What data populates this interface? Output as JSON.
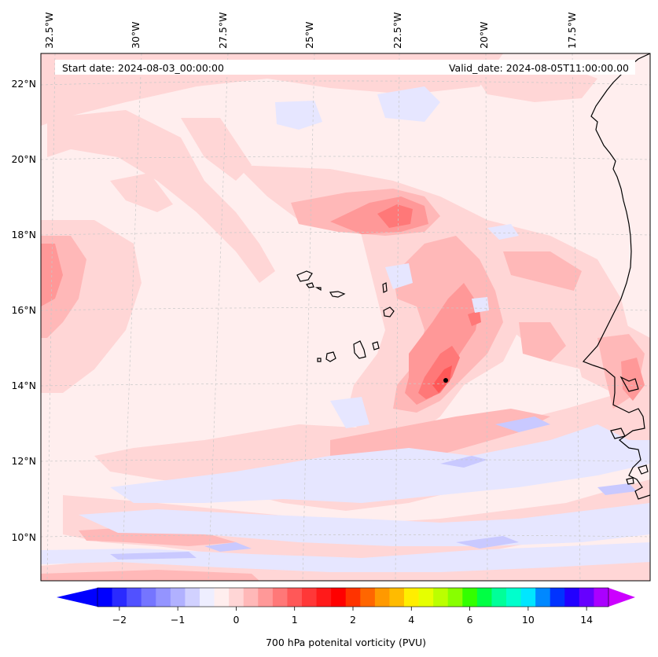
{
  "header": {
    "start_date": "Start date: 2024-08-03_00:00:00",
    "valid_date": "Valid_date: 2024-08-05T11:00:00.00"
  },
  "lon_labels": [
    "32.5°W",
    "30°W",
    "27.5°W",
    "25°W",
    "22.5°W",
    "20°W",
    "17.5°W"
  ],
  "lat_labels": [
    "22°N",
    "20°N",
    "18°N",
    "16°N",
    "14°N",
    "12°N",
    "10°N"
  ],
  "colorbar": {
    "title": "700 hPa potenital vorticity (PVU)",
    "tick_labels": [
      "−2",
      "−1",
      "0",
      "1",
      "2",
      "4",
      "6",
      "10",
      "14"
    ],
    "colors": [
      "#0000ff",
      "#2a2aff",
      "#5151ff",
      "#7575ff",
      "#9494ff",
      "#b1b1ff",
      "#d1d1ff",
      "#eeeeff",
      "#ffeeee",
      "#ffd6d6",
      "#ffb8b8",
      "#ff9898",
      "#ff7878",
      "#ff5858",
      "#ff3838",
      "#ff1a1a",
      "#ff0000",
      "#ff3300",
      "#ff6600",
      "#ff9900",
      "#ffbb00",
      "#ffee00",
      "#e6ff00",
      "#bbff00",
      "#88ff00",
      "#33ff00",
      "#00ff44",
      "#00ff99",
      "#00ffcc",
      "#00e6ff",
      "#0088ff",
      "#0033ff",
      "#2200ff",
      "#6600ff",
      "#aa00ff"
    ],
    "extend_low_color": "#0000ff",
    "extend_high_color": "#cc00ff"
  },
  "colors": {
    "background_field": "#ffeeee",
    "coastline": "#000000",
    "gridline": "#c8c8c8",
    "marker": "#000000"
  }
}
